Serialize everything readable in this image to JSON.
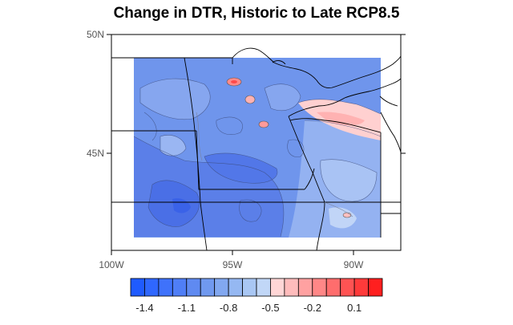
{
  "title": "Change in DTR, Historic to Late RCP8.5",
  "map": {
    "lon_ticks": [
      "100W",
      "95W",
      "90W"
    ],
    "lat_ticks": [
      "50N",
      "45N"
    ]
  },
  "colorbar": {
    "colors": [
      "#1f5bff",
      "#2f67ff",
      "#3f72fb",
      "#4f7ef6",
      "#5f8af1",
      "#7099ef",
      "#82a8f0",
      "#95b8f2",
      "#a9c7f4",
      "#c1d7f7",
      "#ffd6d6",
      "#ffbcbc",
      "#ffa1a1",
      "#ff8787",
      "#ff6d6d",
      "#ff5353",
      "#ff3a3a",
      "#ff1f1f"
    ],
    "labels": [
      "-1.4",
      "-1.1",
      "-0.8",
      "-0.5",
      "-0.2",
      "0.1"
    ]
  }
}
